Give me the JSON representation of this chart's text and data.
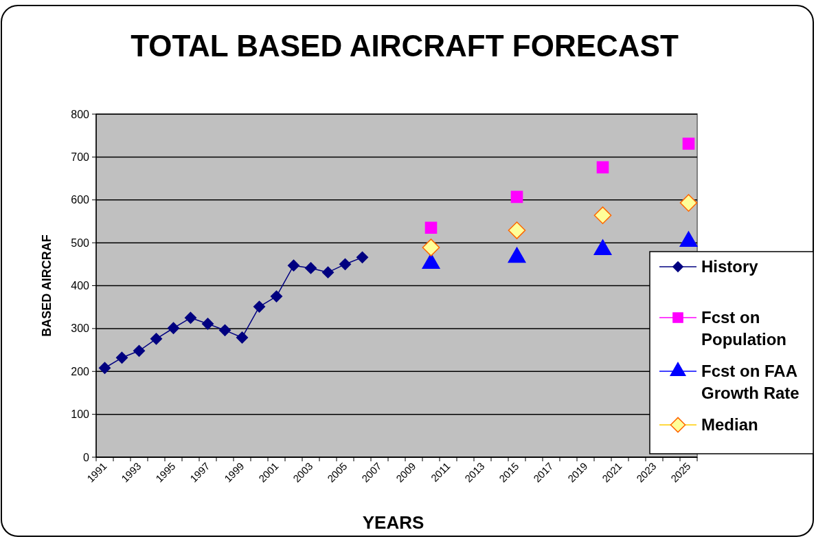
{
  "chart_data": {
    "type": "line",
    "title": "TOTAL BASED AIRCRAFT FORECAST",
    "xlabel": "YEARS",
    "ylabel": "BASED AIRCRAF",
    "categories": [
      "1991",
      null,
      "1993",
      null,
      "1995",
      null,
      "1997",
      null,
      "1999",
      null,
      "2001",
      null,
      "2003",
      null,
      "2005",
      null,
      "2007",
      null,
      "2009",
      null,
      "2011",
      null,
      "2013",
      null,
      "2015",
      null,
      "2017",
      null,
      "2019",
      null,
      "2021",
      null,
      "2023",
      null,
      "2025"
    ],
    "series": [
      {
        "name": "History",
        "marker": "diamond",
        "color": "#000080",
        "values": [
          208,
          232,
          248,
          276,
          301,
          325,
          311,
          296,
          279,
          351,
          375,
          447,
          441,
          431,
          450,
          466,
          null,
          null,
          null,
          null,
          null,
          null,
          null,
          null,
          null,
          null,
          null,
          null,
          null,
          null,
          null,
          null,
          null,
          null,
          null
        ]
      },
      {
        "name": "Fcst on Population",
        "type": "scatter",
        "marker": "square",
        "color": "#ff00ff",
        "values": [
          null,
          null,
          null,
          null,
          null,
          null,
          null,
          null,
          null,
          null,
          null,
          null,
          null,
          null,
          null,
          null,
          null,
          null,
          null,
          535,
          null,
          null,
          null,
          null,
          607,
          null,
          null,
          null,
          null,
          676,
          null,
          null,
          null,
          null,
          731
        ]
      },
      {
        "name": "Fcst on FAA Growth Rate",
        "type": "scatter",
        "marker": "triangle",
        "color": "#0000ff",
        "values": [
          null,
          null,
          null,
          null,
          null,
          null,
          null,
          null,
          null,
          null,
          null,
          null,
          null,
          null,
          null,
          null,
          null,
          null,
          null,
          452,
          null,
          null,
          null,
          null,
          466,
          null,
          null,
          null,
          null,
          484,
          null,
          null,
          null,
          null,
          503
        ]
      },
      {
        "name": "Median",
        "type": "scatter",
        "marker": "diamond",
        "color": "#ffff99",
        "values": [
          null,
          null,
          null,
          null,
          null,
          null,
          null,
          null,
          null,
          null,
          null,
          null,
          null,
          null,
          null,
          null,
          null,
          null,
          null,
          489,
          null,
          null,
          null,
          null,
          529,
          null,
          null,
          null,
          null,
          564,
          null,
          null,
          null,
          null,
          593
        ]
      }
    ],
    "ylim": [
      0,
      800
    ],
    "yticks": [
      0,
      100,
      200,
      300,
      400,
      500,
      600,
      700,
      800
    ],
    "grid": "y",
    "legend": "right"
  }
}
